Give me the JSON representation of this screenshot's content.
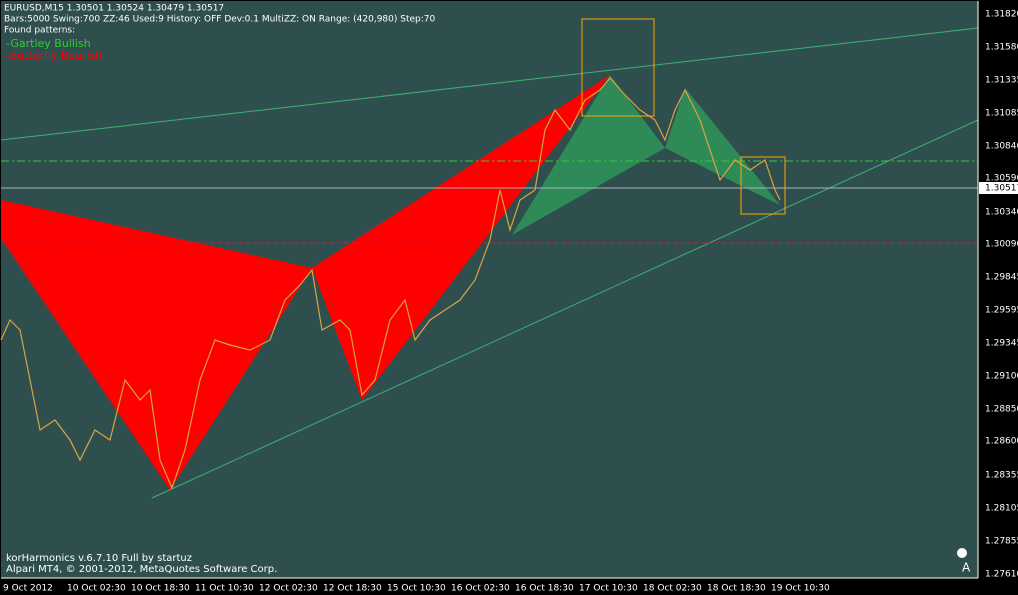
{
  "header": {
    "lines": [
      "EURUSD,M15  1.30501 1.30524 1.30479 1.30517",
      "Bars:5000  Swing:700  ZZ:46  Used:9  History: OFF Dev:0.1  MultiZZ: ON  Range: (420,980)  Step:70",
      "Found patterns:"
    ]
  },
  "patterns": [
    "-Gartley Bullish",
    "-Butterfly Bearish"
  ],
  "price_axis": {
    "labels": [
      "1.31820",
      "1.31580",
      "1.31335",
      "1.31085",
      "1.30840",
      "1.30590",
      "1.30340",
      "1.30090",
      "1.29845",
      "1.29595",
      "1.29345",
      "1.29100",
      "1.28850",
      "1.28600",
      "1.28355",
      "1.28105",
      "1.27855",
      "1.27610"
    ],
    "current": "1.30517"
  },
  "time_axis": {
    "labels": [
      "9 Oct 2012",
      "10 Oct 02:30",
      "10 Oct 18:30",
      "11 Oct 10:30",
      "12 Oct 02:30",
      "12 Oct 18:30",
      "15 Oct 10:30",
      "16 Oct 02:30",
      "16 Oct 18:30",
      "17 Oct 10:30",
      "18 Oct 02:30",
      "18 Oct 18:30",
      "19 Oct 10:30"
    ]
  },
  "footer": {
    "lines": [
      "korHarmonics v.6.7.10 Full by startuz",
      "Alpari MT4, © 2001-2012, MetaQuotes Software Corp."
    ]
  }
}
